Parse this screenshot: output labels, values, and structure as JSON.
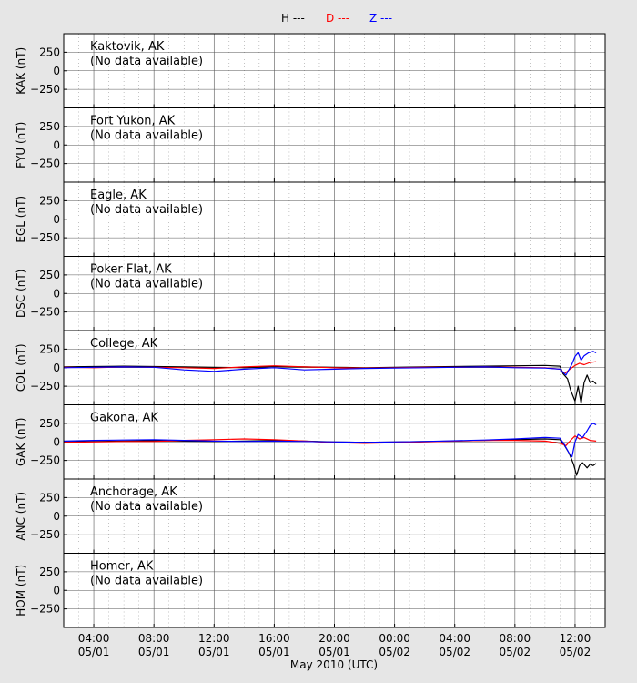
{
  "chart_data": {
    "type": "line",
    "legend": {
      "placement": "top-center",
      "entries": [
        {
          "label": "H ---",
          "color": "#000000"
        },
        {
          "label": "D ---",
          "color": "#ff0000"
        },
        {
          "label": "Z ---",
          "color": "#0000ff"
        }
      ]
    },
    "xlabel": "May 2010 (UTC)",
    "x_range_hours": [
      2.0,
      38.0
    ],
    "x_ticks": [
      {
        "hour": 4,
        "time": "04:00",
        "date": "05/01"
      },
      {
        "hour": 8,
        "time": "08:00",
        "date": "05/01"
      },
      {
        "hour": 12,
        "time": "12:00",
        "date": "05/01"
      },
      {
        "hour": 16,
        "time": "16:00",
        "date": "05/01"
      },
      {
        "hour": 20,
        "time": "20:00",
        "date": "05/01"
      },
      {
        "hour": 24,
        "time": "00:00",
        "date": "05/02"
      },
      {
        "hour": 28,
        "time": "04:00",
        "date": "05/02"
      },
      {
        "hour": 32,
        "time": "08:00",
        "date": "05/02"
      },
      {
        "hour": 36,
        "time": "12:00",
        "date": "05/02"
      }
    ],
    "y_range": [
      -500,
      500
    ],
    "y_ticks": [
      250,
      0,
      -250
    ],
    "grid": true,
    "panels": [
      {
        "code": "KAK",
        "ylabel": "KAK (nT)",
        "station": "Kaktovik, AK",
        "note": "(No data available)",
        "series": []
      },
      {
        "code": "FYU",
        "ylabel": "FYU (nT)",
        "station": "Fort Yukon, AK",
        "note": "(No data available)",
        "series": []
      },
      {
        "code": "EGL",
        "ylabel": "EGL (nT)",
        "station": "Eagle, AK",
        "note": "(No data available)",
        "series": []
      },
      {
        "code": "DSC",
        "ylabel": "DSC (nT)",
        "station": "Poker Flat, AK",
        "note": "(No data available)",
        "series": []
      },
      {
        "code": "COL",
        "ylabel": "COL (nT)",
        "station": "College, AK",
        "note": "",
        "series": [
          {
            "name": "H",
            "color": "#000000",
            "points": [
              [
                2.0,
                10
              ],
              [
                4,
                15
              ],
              [
                6,
                20
              ],
              [
                8,
                15
              ],
              [
                10,
                10
              ],
              [
                12,
                5
              ],
              [
                14,
                0
              ],
              [
                16,
                15
              ],
              [
                18,
                10
              ],
              [
                20,
                5
              ],
              [
                22,
                0
              ],
              [
                24,
                5
              ],
              [
                26,
                10
              ],
              [
                28,
                15
              ],
              [
                30,
                20
              ],
              [
                32,
                25
              ],
              [
                34,
                30
              ],
              [
                35,
                20
              ],
              [
                35.2,
                -80
              ],
              [
                35.5,
                -150
              ],
              [
                35.7,
                -300
              ],
              [
                36.0,
                -450
              ],
              [
                36.2,
                -250
              ],
              [
                36.4,
                -480
              ],
              [
                36.6,
                -200
              ],
              [
                36.8,
                -100
              ],
              [
                37.0,
                -200
              ],
              [
                37.2,
                -180
              ],
              [
                37.4,
                -220
              ]
            ]
          },
          {
            "name": "D",
            "color": "#ff0000",
            "points": [
              [
                2.0,
                5
              ],
              [
                4,
                0
              ],
              [
                6,
                10
              ],
              [
                8,
                5
              ],
              [
                10,
                0
              ],
              [
                12,
                -10
              ],
              [
                14,
                10
              ],
              [
                16,
                25
              ],
              [
                18,
                10
              ],
              [
                20,
                0
              ],
              [
                22,
                -5
              ],
              [
                24,
                0
              ],
              [
                26,
                5
              ],
              [
                28,
                5
              ],
              [
                30,
                10
              ],
              [
                32,
                5
              ],
              [
                34,
                0
              ],
              [
                35,
                -20
              ],
              [
                35.3,
                -80
              ],
              [
                35.6,
                -30
              ],
              [
                36.0,
                30
              ],
              [
                36.3,
                60
              ],
              [
                36.6,
                40
              ],
              [
                37.0,
                70
              ],
              [
                37.4,
                80
              ]
            ]
          },
          {
            "name": "Z",
            "color": "#0000ff",
            "points": [
              [
                2.0,
                0
              ],
              [
                4,
                5
              ],
              [
                6,
                10
              ],
              [
                8,
                5
              ],
              [
                10,
                -30
              ],
              [
                12,
                -50
              ],
              [
                14,
                -20
              ],
              [
                16,
                0
              ],
              [
                18,
                -30
              ],
              [
                20,
                -20
              ],
              [
                22,
                -10
              ],
              [
                24,
                -5
              ],
              [
                26,
                0
              ],
              [
                28,
                5
              ],
              [
                30,
                10
              ],
              [
                32,
                0
              ],
              [
                34,
                -5
              ],
              [
                35,
                -20
              ],
              [
                35.4,
                -100
              ],
              [
                35.8,
                50
              ],
              [
                36.0,
                150
              ],
              [
                36.2,
                200
              ],
              [
                36.4,
                100
              ],
              [
                36.6,
                160
              ],
              [
                36.9,
                200
              ],
              [
                37.2,
                220
              ],
              [
                37.4,
                200
              ]
            ]
          }
        ]
      },
      {
        "code": "GAK",
        "ylabel": "GAK (nT)",
        "station": "Gakona, AK",
        "note": "",
        "series": [
          {
            "name": "H",
            "color": "#000000",
            "points": [
              [
                2.0,
                0
              ],
              [
                4,
                5
              ],
              [
                6,
                10
              ],
              [
                8,
                15
              ],
              [
                10,
                10
              ],
              [
                12,
                5
              ],
              [
                14,
                10
              ],
              [
                16,
                20
              ],
              [
                18,
                10
              ],
              [
                20,
                0
              ],
              [
                22,
                -5
              ],
              [
                24,
                0
              ],
              [
                26,
                5
              ],
              [
                28,
                10
              ],
              [
                30,
                20
              ],
              [
                32,
                30
              ],
              [
                34,
                40
              ],
              [
                35,
                30
              ],
              [
                35.3,
                -50
              ],
              [
                35.6,
                -150
              ],
              [
                35.9,
                -300
              ],
              [
                36.1,
                -450
              ],
              [
                36.3,
                -320
              ],
              [
                36.5,
                -280
              ],
              [
                36.8,
                -350
              ],
              [
                37.0,
                -300
              ],
              [
                37.2,
                -320
              ],
              [
                37.4,
                -290
              ]
            ]
          },
          {
            "name": "D",
            "color": "#ff0000",
            "points": [
              [
                2.0,
                -5
              ],
              [
                4,
                0
              ],
              [
                6,
                5
              ],
              [
                8,
                5
              ],
              [
                10,
                20
              ],
              [
                12,
                30
              ],
              [
                14,
                40
              ],
              [
                16,
                30
              ],
              [
                18,
                10
              ],
              [
                20,
                -10
              ],
              [
                22,
                -20
              ],
              [
                24,
                -10
              ],
              [
                26,
                0
              ],
              [
                28,
                10
              ],
              [
                30,
                20
              ],
              [
                32,
                20
              ],
              [
                34,
                10
              ],
              [
                35,
                -20
              ],
              [
                35.4,
                -50
              ],
              [
                35.7,
                20
              ],
              [
                36.0,
                80
              ],
              [
                36.3,
                40
              ],
              [
                36.6,
                60
              ],
              [
                37.0,
                20
              ],
              [
                37.4,
                10
              ]
            ]
          },
          {
            "name": "Z",
            "color": "#0000ff",
            "points": [
              [
                2.0,
                10
              ],
              [
                4,
                20
              ],
              [
                6,
                25
              ],
              [
                8,
                30
              ],
              [
                10,
                20
              ],
              [
                12,
                10
              ],
              [
                14,
                5
              ],
              [
                16,
                10
              ],
              [
                18,
                5
              ],
              [
                20,
                0
              ],
              [
                22,
                -5
              ],
              [
                24,
                0
              ],
              [
                26,
                5
              ],
              [
                28,
                15
              ],
              [
                30,
                25
              ],
              [
                32,
                40
              ],
              [
                34,
                60
              ],
              [
                35,
                50
              ],
              [
                35.3,
                -40
              ],
              [
                35.6,
                -150
              ],
              [
                35.8,
                -200
              ],
              [
                36.0,
                0
              ],
              [
                36.2,
                100
              ],
              [
                36.5,
                60
              ],
              [
                36.8,
                150
              ],
              [
                37.0,
                220
              ],
              [
                37.2,
                250
              ],
              [
                37.4,
                230
              ]
            ]
          }
        ]
      },
      {
        "code": "ANC",
        "ylabel": "ANC (nT)",
        "station": "Anchorage, AK",
        "note": "(No data available)",
        "series": []
      },
      {
        "code": "HOM",
        "ylabel": "HOM (nT)",
        "station": "Homer, AK",
        "note": "(No data available)",
        "series": []
      }
    ]
  }
}
